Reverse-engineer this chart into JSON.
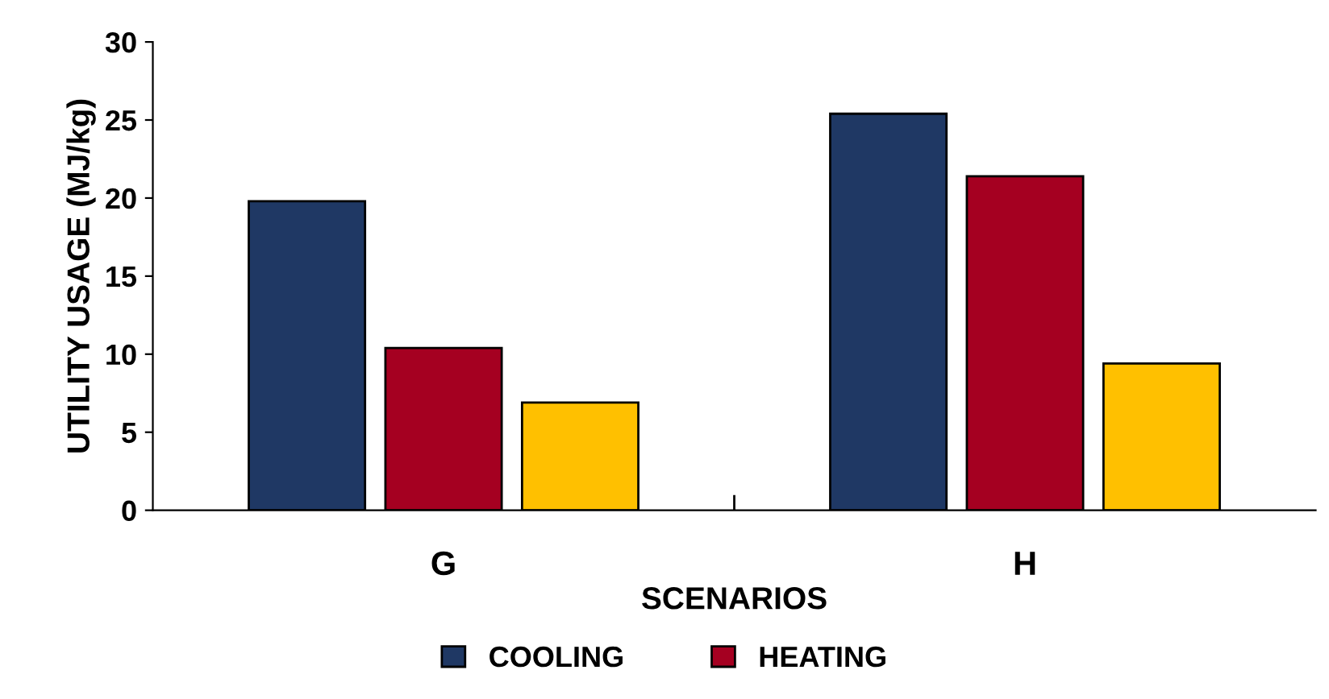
{
  "chart_data": {
    "type": "bar",
    "xlabel": "SCENARIOS",
    "ylabel": "UTILITY USAGE (MJ/kg)",
    "categories": [
      "G",
      "H"
    ],
    "series": [
      {
        "name": "COOLING",
        "color": "#1f3864",
        "values": [
          19.8,
          25.4
        ]
      },
      {
        "name": "HEATING",
        "color": "#a50021",
        "values": [
          10.4,
          21.4
        ]
      },
      {
        "color": "#ffc000",
        "values": [
          6.9,
          9.4
        ]
      }
    ],
    "ylim": [
      0,
      30
    ],
    "yticks": [
      0,
      5,
      10,
      15,
      20,
      25,
      30
    ],
    "grid": false,
    "legend": "bottom"
  }
}
